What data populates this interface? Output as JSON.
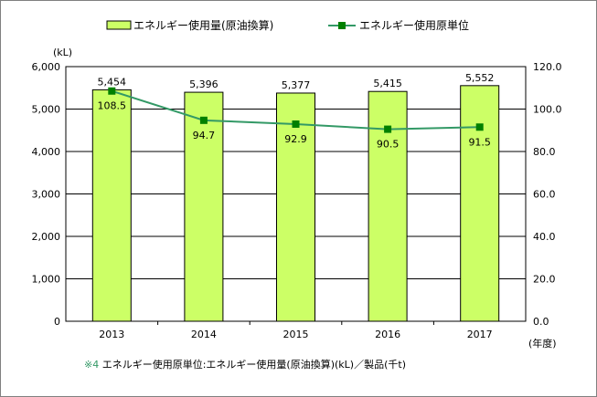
{
  "chart_data": {
    "type": "bar+line",
    "categories": [
      "2013",
      "2014",
      "2015",
      "2016",
      "2017"
    ],
    "series": [
      {
        "name": "エネルギー使用量(原油換算)",
        "type": "bar",
        "axis": "left",
        "values": [
          5454,
          5396,
          5377,
          5415,
          5552
        ],
        "labels": [
          "5,454",
          "5,396",
          "5,377",
          "5,415",
          "5,552"
        ]
      },
      {
        "name": "エネルギー使用原単位",
        "type": "line",
        "axis": "right",
        "values": [
          108.5,
          94.7,
          92.9,
          90.5,
          91.5
        ],
        "labels": [
          "108.5",
          "94.7",
          "92.9",
          "90.5",
          "91.5"
        ]
      }
    ],
    "y_left": {
      "label": "(kL)",
      "min": 0,
      "max": 6000,
      "step": 1000,
      "ticks": [
        "0",
        "1,000",
        "2,000",
        "3,000",
        "4,000",
        "5,000",
        "6,000"
      ]
    },
    "y_right": {
      "min": 0,
      "max": 120,
      "step": 20,
      "ticks": [
        "0.0",
        "20.0",
        "40.0",
        "60.0",
        "80.0",
        "100.0",
        "120.0"
      ]
    },
    "xlabel": "(年度)",
    "grid": true,
    "legend_position": "top",
    "footnote": "※4 エネルギー使用原単位:エネルギー使用量(原油換算)(kL)／製品(千t)",
    "colors": {
      "bar_fill": "#ccff66",
      "bar_stroke": "#000000",
      "line": "#339966",
      "marker": "#008000",
      "footnote_mark": "#339966"
    }
  }
}
